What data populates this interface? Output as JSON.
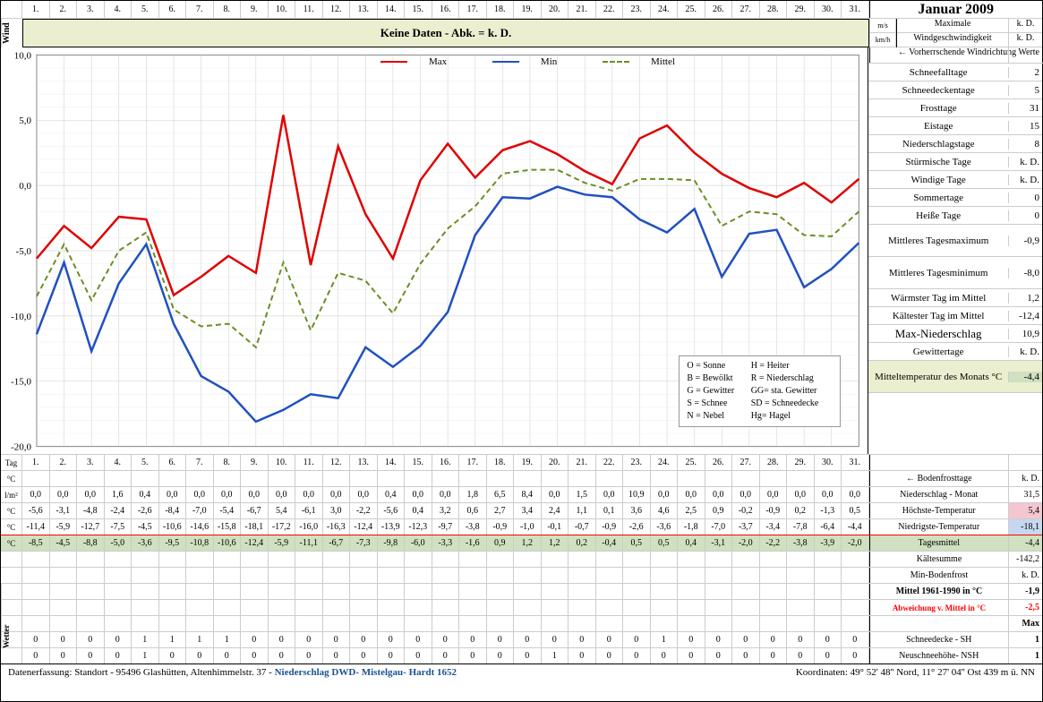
{
  "title": "Januar 2009",
  "days": [
    "1.",
    "2.",
    "3.",
    "4.",
    "5.",
    "6.",
    "7.",
    "8.",
    "9.",
    "10.",
    "11.",
    "12.",
    "13.",
    "14.",
    "15.",
    "16.",
    "17.",
    "18.",
    "19.",
    "20.",
    "21.",
    "22.",
    "23.",
    "24.",
    "25.",
    "26.",
    "27.",
    "28.",
    "29.",
    "30.",
    "31."
  ],
  "wind": {
    "label": "Wind",
    "band_text": "Keine Daten - Abk. = k. D.",
    "rows": [
      {
        "unit": "m/s",
        "lbl": "Maximale",
        "val": "k. D."
      },
      {
        "unit": "km/h",
        "lbl": "Windgeschwindigkeit",
        "val": "k. D."
      }
    ],
    "direction": "← Vorherrschende Windrichtung"
  },
  "chart": {
    "ylim": [
      -20,
      10
    ],
    "ytick_step": 5,
    "yminor": 1,
    "ylabel_unit": "°C",
    "series": [
      {
        "name": "Max",
        "color": "#e00000",
        "dash": "",
        "width": 2.5,
        "values": [
          -5.6,
          -3.1,
          -4.8,
          -2.4,
          -2.6,
          -8.4,
          -7.0,
          -5.4,
          -6.7,
          5.4,
          -6.1,
          3.0,
          -2.2,
          -5.6,
          0.4,
          3.2,
          0.6,
          2.7,
          3.4,
          2.4,
          1.1,
          0.1,
          3.6,
          4.6,
          2.5,
          0.9,
          -0.2,
          -0.9,
          0.2,
          -1.3,
          0.5
        ]
      },
      {
        "name": "Min",
        "color": "#2050c0",
        "dash": "",
        "width": 2.5,
        "values": [
          -11.4,
          -5.9,
          -12.7,
          -7.5,
          -4.5,
          -10.6,
          -14.6,
          -15.8,
          -18.1,
          -17.2,
          -16.0,
          -16.3,
          -12.4,
          -13.9,
          -12.3,
          -9.7,
          -3.8,
          -0.9,
          -1.0,
          -0.1,
          -0.7,
          -0.9,
          -2.6,
          -3.6,
          -1.8,
          -7.0,
          -3.7,
          -3.4,
          -7.8,
          -6.4,
          -4.4
        ]
      },
      {
        "name": "Mittel",
        "color": "#6b8e23",
        "dash": "6,4",
        "width": 2.0,
        "values": [
          -8.5,
          -4.5,
          -8.8,
          -5.0,
          -3.6,
          -9.5,
          -10.8,
          -10.6,
          -12.4,
          -5.9,
          -11.1,
          -6.7,
          -7.3,
          -9.8,
          -6.0,
          -3.3,
          -1.6,
          0.9,
          1.2,
          1.2,
          0.2,
          -0.4,
          0.5,
          0.5,
          0.4,
          -3.1,
          -2.0,
          -2.2,
          -3.8,
          -3.9,
          -2.0
        ]
      }
    ],
    "background": "#ffffff",
    "grid_color": "#cccccc",
    "grid_minor_color": "#eeeeee",
    "font_size": 11
  },
  "chart_legend_box": {
    "left_col": [
      "O = Sonne",
      "B = Bewölkt",
      "G = Gewitter",
      "S = Schnee",
      "N = Nebel"
    ],
    "right_col": [
      "H = Heiter",
      "R = Niederschlag",
      "GG= sta. Gewitter",
      "SD = Schneedecke",
      "Hg= Hagel"
    ]
  },
  "stats": {
    "werte_header": "Werte",
    "rows": [
      {
        "lbl": "Schneefalltage",
        "val": "2"
      },
      {
        "lbl": "Schneedeckentage",
        "val": "5"
      },
      {
        "lbl": "Frosttage",
        "val": "31"
      },
      {
        "lbl": "Eistage",
        "val": "15"
      },
      {
        "lbl": "Niederschlagstage",
        "val": "8"
      },
      {
        "lbl": "Stürmische Tage",
        "val": "k. D."
      },
      {
        "lbl": "Windige Tage",
        "val": "k. D."
      },
      {
        "lbl": "Sommertage",
        "val": "0"
      },
      {
        "lbl": "Heiße Tage",
        "val": "0"
      },
      {
        "lbl": "Mittleres Tagesmaximum",
        "val": "-0,9",
        "h2": true
      },
      {
        "lbl": "Mittleres Tagesminimum",
        "val": "-8,0",
        "h2": true
      },
      {
        "lbl": "Wärmster Tag im Mittel",
        "val": "1,2"
      },
      {
        "lbl": "Kältester Tag im Mittel",
        "val": "-12,4"
      },
      {
        "lbl": "Max-Niederschlag",
        "val": "10,9",
        "big": true
      },
      {
        "lbl": "Gewittertage",
        "val": "k. D."
      },
      {
        "lbl": "Mitteltemperatur des Monats °C",
        "val": "-4,4",
        "h2": true,
        "hl": true
      }
    ]
  },
  "table": {
    "tag_label": "Tag",
    "row_labels": [
      "°C",
      "l/m²",
      "°C",
      "°C",
      "°C"
    ],
    "precip": [
      "0,0",
      "0,0",
      "0,0",
      "1,6",
      "0,4",
      "0,0",
      "0,0",
      "0,0",
      "0,0",
      "0,0",
      "0,0",
      "0,0",
      "0,0",
      "0,4",
      "0,0",
      "0,0",
      "1,8",
      "6,5",
      "8,4",
      "0,0",
      "1,5",
      "0,0",
      "10,9",
      "0,0",
      "0,0",
      "0,0",
      "0,0",
      "0,0",
      "0,0",
      "0,0",
      "0,0"
    ],
    "max": [
      "-5,6",
      "-3,1",
      "-4,8",
      "-2,4",
      "-2,6",
      "-8,4",
      "-7,0",
      "-5,4",
      "-6,7",
      "5,4",
      "-6,1",
      "3,0",
      "-2,2",
      "-5,6",
      "0,4",
      "3,2",
      "0,6",
      "2,7",
      "3,4",
      "2,4",
      "1,1",
      "0,1",
      "3,6",
      "4,6",
      "2,5",
      "0,9",
      "-0,2",
      "-0,9",
      "0,2",
      "-1,3",
      "0,5"
    ],
    "min": [
      "-11,4",
      "-5,9",
      "-12,7",
      "-7,5",
      "-4,5",
      "-10,6",
      "-14,6",
      "-15,8",
      "-18,1",
      "-17,2",
      "-16,0",
      "-16,3",
      "-12,4",
      "-13,9",
      "-12,3",
      "-9,7",
      "-3,8",
      "-0,9",
      "-1,0",
      "-0,1",
      "-0,7",
      "-0,9",
      "-2,6",
      "-3,6",
      "-1,8",
      "-7,0",
      "-3,7",
      "-3,4",
      "-7,8",
      "-6,4",
      "-4,4"
    ],
    "mittel": [
      "-8,5",
      "-4,5",
      "-8,8",
      "-5,0",
      "-3,6",
      "-9,5",
      "-10,8",
      "-10,6",
      "-12,4",
      "-5,9",
      "-11,1",
      "-6,7",
      "-7,3",
      "-9,8",
      "-6,0",
      "-3,3",
      "-1,6",
      "0,9",
      "1,2",
      "1,2",
      "0,2",
      "-0,4",
      "0,5",
      "0,5",
      "0,4",
      "-3,1",
      "-2,0",
      "-2,2",
      "-3,8",
      "-3,9",
      "-2,0"
    ],
    "right_rows": [
      {
        "lbl": "← Bodenfrosttage",
        "val": "k. D."
      },
      {
        "lbl": "Niederschlag - Monat",
        "val": "31,5"
      },
      {
        "lbl": "Höchste-Temperatur",
        "val": "5,4",
        "cls": "hl-pink"
      },
      {
        "lbl": "Niedrigste-Temperatur",
        "val": "-18,1",
        "cls": "hl-blue"
      },
      {
        "lbl": "Tagesmittel",
        "val": "-4,4",
        "cls": "hl-gr"
      },
      {
        "lbl": "Kältesumme",
        "val": "-142,2"
      },
      {
        "lbl": "Min-Bodenfrost",
        "val": "k. D."
      },
      {
        "lbl": "Mittel 1961-1990 in °C",
        "val": "-1,9",
        "bold": true
      },
      {
        "lbl": "Abweichung v. Mittel in °C",
        "val": "-2,5",
        "red": true
      },
      {
        "lbl": "",
        "val": "Max",
        "bold": true
      }
    ]
  },
  "bottom": {
    "wetter_label": "Wetter",
    "sh_label": "Schneedecke -   SH",
    "nsh_label": "Neuschneehöhe- NSH",
    "sh": [
      "0",
      "0",
      "0",
      "0",
      "1",
      "1",
      "1",
      "1",
      "0",
      "0",
      "0",
      "0",
      "0",
      "0",
      "0",
      "0",
      "0",
      "0",
      "0",
      "0",
      "0",
      "0",
      "0",
      "1",
      "0",
      "0",
      "0",
      "0",
      "0",
      "0",
      "0"
    ],
    "nsh": [
      "0",
      "0",
      "0",
      "0",
      "1",
      "0",
      "0",
      "0",
      "0",
      "0",
      "0",
      "0",
      "0",
      "0",
      "0",
      "0",
      "0",
      "0",
      "0",
      "1",
      "0",
      "0",
      "0",
      "0",
      "0",
      "0",
      "0",
      "0",
      "0",
      "0",
      "0"
    ],
    "sh_val": "1",
    "nsh_val": "1"
  },
  "footer": {
    "left_prefix": "Datenerfassung:  Standort  -   95496  Glashütten, Altenhimmelstr. 37 - ",
    "left_link": "Niederschlag DWD- Mistelgau- Hardt 1652",
    "right": "Koordinaten:    49° 52' 48'' Nord,    11° 27' 04'' Ost    439 m ü. NN"
  }
}
